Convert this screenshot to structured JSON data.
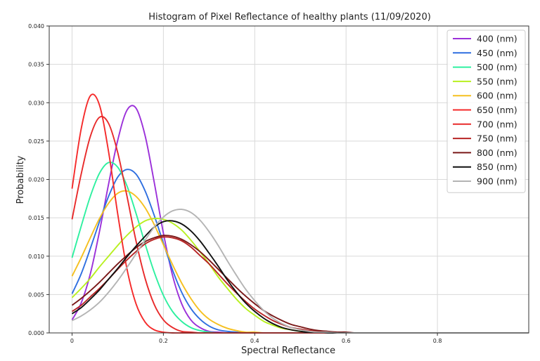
{
  "chart_data": {
    "type": "line",
    "title": "Histogram of Pixel Reflectance of healthy plants (11/09/2020)",
    "xlabel": "Spectral Reflectance",
    "ylabel": "Probability",
    "xlim": [
      -0.05,
      1.0
    ],
    "ylim": [
      0,
      0.04
    ],
    "x_ticks": [
      {
        "value": 0,
        "label": "0"
      },
      {
        "value": 0.2,
        "label": "0.2"
      },
      {
        "value": 0.4,
        "label": "0.4"
      },
      {
        "value": 0.6,
        "label": "0.6"
      },
      {
        "value": 0.8,
        "label": "0.8"
      }
    ],
    "y_ticks": [
      {
        "value": 0,
        "label": "0.000"
      },
      {
        "value": 0.005,
        "label": "0.005"
      },
      {
        "value": 0.01,
        "label": "0.010"
      },
      {
        "value": 0.015,
        "label": "0.015"
      },
      {
        "value": 0.02,
        "label": "0.020"
      },
      {
        "value": 0.025,
        "label": "0.025"
      },
      {
        "value": 0.03,
        "label": "0.030"
      },
      {
        "value": 0.035,
        "label": "0.035"
      },
      {
        "value": 0.04,
        "label": "0.040"
      }
    ],
    "grid": true,
    "legend_position": "top-right",
    "x": [
      0,
      0.02,
      0.04,
      0.06,
      0.08,
      0.1,
      0.12,
      0.14,
      0.16,
      0.18,
      0.2,
      0.22,
      0.24,
      0.26,
      0.28,
      0.3,
      0.32,
      0.34,
      0.36,
      0.38,
      0.4,
      0.42,
      0.44,
      0.46,
      0.48,
      0.5,
      0.52,
      0.54,
      0.56,
      0.58,
      0.6,
      0.62,
      0.64,
      0.66,
      0.68,
      0.7,
      0.72,
      0.74,
      0.76,
      0.78,
      0.8,
      0.82,
      0.84,
      0.86,
      0.88,
      0.9,
      0.92,
      0.94,
      0.96,
      0.98,
      1.0
    ],
    "series": [
      {
        "name": "400 (nm)",
        "color": "#9b30d9",
        "values": [
          0.0017,
          0.0039,
          0.0077,
          0.0132,
          0.0194,
          0.0251,
          0.029,
          0.0293,
          0.0257,
          0.0196,
          0.013,
          0.0075,
          0.0038,
          0.0017,
          0.0007,
          0.0002,
          0.0001,
          0,
          0,
          0,
          0,
          0,
          0,
          0,
          0,
          0,
          0,
          0,
          0,
          0,
          0,
          0,
          0,
          0,
          0,
          0,
          0,
          0,
          0,
          0,
          0,
          0,
          0,
          0,
          0,
          0,
          0,
          0,
          0,
          0,
          0
        ]
      },
      {
        "name": "450 (nm)",
        "color": "#2f6fe0",
        "values": [
          0.0051,
          0.0077,
          0.011,
          0.0145,
          0.0178,
          0.0203,
          0.0213,
          0.0207,
          0.0185,
          0.0153,
          0.0117,
          0.0082,
          0.0053,
          0.0032,
          0.0018,
          0.0009,
          0.0004,
          0.0002,
          0.0001,
          0,
          0,
          0,
          0,
          0,
          0,
          0,
          0,
          0,
          0,
          0,
          0,
          0,
          0,
          0,
          0,
          0,
          0,
          0,
          0,
          0,
          0,
          0,
          0,
          0,
          0,
          0,
          0,
          0,
          0,
          0,
          0
        ]
      },
      {
        "name": "500 (nm)",
        "color": "#2ef0a0",
        "values": [
          0.0098,
          0.0139,
          0.0178,
          0.0208,
          0.0222,
          0.0216,
          0.0192,
          0.0156,
          0.0116,
          0.0079,
          0.0049,
          0.0028,
          0.0015,
          0.0007,
          0.0003,
          0.0001,
          0,
          0,
          0,
          0,
          0,
          0,
          0,
          0,
          0,
          0,
          0,
          0,
          0,
          0,
          0,
          0,
          0,
          0,
          0,
          0,
          0,
          0,
          0,
          0,
          0,
          0,
          0,
          0,
          0,
          0,
          0,
          0,
          0,
          0,
          0
        ]
      },
      {
        "name": "550 (nm)",
        "color": "#b8f020",
        "values": [
          0.0046,
          0.0058,
          0.0071,
          0.0086,
          0.01,
          0.0114,
          0.0127,
          0.0138,
          0.0146,
          0.0149,
          0.0148,
          0.0143,
          0.0134,
          0.0121,
          0.0106,
          0.009,
          0.0073,
          0.0058,
          0.0044,
          0.0032,
          0.0023,
          0.0015,
          0.001,
          0.0006,
          0.0004,
          0.0002,
          0.0001,
          0.0001,
          0,
          0,
          0,
          0,
          0,
          0,
          0,
          0,
          0,
          0,
          0,
          0,
          0,
          0,
          0,
          0,
          0,
          0,
          0,
          0,
          0,
          0,
          0
        ]
      },
      {
        "name": "600 (nm)",
        "color": "#f5c020",
        "values": [
          0.0074,
          0.0098,
          0.0124,
          0.0149,
          0.0169,
          0.0182,
          0.0185,
          0.0178,
          0.0163,
          0.0141,
          0.0115,
          0.0089,
          0.0065,
          0.0045,
          0.0029,
          0.0018,
          0.0011,
          0.0006,
          0.0003,
          0.0001,
          0.0001,
          0,
          0,
          0,
          0,
          0,
          0,
          0,
          0,
          0,
          0,
          0,
          0,
          0,
          0,
          0,
          0,
          0,
          0,
          0,
          0,
          0,
          0,
          0,
          0,
          0,
          0,
          0,
          0,
          0,
          0
        ]
      },
      {
        "name": "650 (nm)",
        "color": "#f52a2a",
        "values": [
          0.0188,
          0.0266,
          0.0309,
          0.0297,
          0.0236,
          0.0155,
          0.0084,
          0.0038,
          0.0014,
          0.0004,
          0.0001,
          0,
          0,
          0,
          0,
          0,
          0,
          0,
          0,
          0,
          0,
          0,
          0,
          0,
          0,
          0,
          0,
          0,
          0,
          0,
          0,
          0,
          0,
          0,
          0,
          0,
          0,
          0,
          0,
          0,
          0,
          0,
          0,
          0,
          0,
          0,
          0,
          0,
          0,
          0,
          0
        ]
      },
      {
        "name": "700 (nm)",
        "color": "#e82a2a",
        "values": [
          0.0148,
          0.0207,
          0.0256,
          0.0281,
          0.0273,
          0.0235,
          0.0179,
          0.012,
          0.0071,
          0.0037,
          0.0017,
          0.0007,
          0.0002,
          0.0001,
          0,
          0,
          0,
          0,
          0,
          0,
          0,
          0,
          0,
          0,
          0,
          0,
          0,
          0,
          0,
          0,
          0,
          0,
          0,
          0,
          0,
          0,
          0,
          0,
          0,
          0,
          0,
          0,
          0,
          0,
          0,
          0,
          0,
          0,
          0,
          0,
          0
        ]
      },
      {
        "name": "750 (nm)",
        "color": "#b82424",
        "values": [
          0.0028,
          0.0036,
          0.0047,
          0.0058,
          0.007,
          0.0083,
          0.0095,
          0.0106,
          0.0116,
          0.0122,
          0.0125,
          0.0124,
          0.012,
          0.0112,
          0.0101,
          0.009,
          0.0077,
          0.0064,
          0.0052,
          0.0041,
          0.0031,
          0.0023,
          0.0016,
          0.0011,
          0.0007,
          0.0005,
          0.0003,
          0.0002,
          0.0001,
          0.0001,
          0,
          0,
          0,
          0,
          0,
          0,
          0,
          0,
          0,
          0,
          0,
          0,
          0,
          0,
          0,
          0,
          0,
          0,
          0,
          0,
          0
        ]
      },
      {
        "name": "800 (nm)",
        "color": "#7a1818",
        "values": [
          0.0036,
          0.0045,
          0.0055,
          0.0066,
          0.0078,
          0.009,
          0.0101,
          0.0111,
          0.0119,
          0.0124,
          0.0127,
          0.0126,
          0.0122,
          0.0115,
          0.0106,
          0.0095,
          0.0083,
          0.0071,
          0.0059,
          0.0048,
          0.0038,
          0.0029,
          0.0022,
          0.0016,
          0.0011,
          0.0008,
          0.0005,
          0.0003,
          0.0002,
          0.0001,
          0.0001,
          0,
          0,
          0,
          0,
          0,
          0,
          0,
          0,
          0,
          0,
          0,
          0,
          0,
          0,
          0,
          0,
          0,
          0,
          0,
          0
        ]
      },
      {
        "name": "850 (nm)",
        "color": "#111111",
        "values": [
          0.0025,
          0.0033,
          0.0044,
          0.0056,
          0.007,
          0.0084,
          0.0099,
          0.0113,
          0.0126,
          0.0138,
          0.0145,
          0.0146,
          0.0142,
          0.0133,
          0.012,
          0.0104,
          0.0087,
          0.0069,
          0.0053,
          0.0039,
          0.0028,
          0.0019,
          0.0012,
          0.0007,
          0.0004,
          0.0002,
          0.0001,
          0.0001,
          0,
          0,
          0,
          0,
          0,
          0,
          0,
          0,
          0,
          0,
          0,
          0,
          0,
          0,
          0,
          0,
          0,
          0,
          0,
          0,
          0,
          0,
          0
        ]
      },
      {
        "name": "900 (nm)",
        "color": "#b4b4b4",
        "values": [
          0.0016,
          0.0022,
          0.003,
          0.004,
          0.0053,
          0.0068,
          0.0085,
          0.0103,
          0.0121,
          0.0138,
          0.0151,
          0.0159,
          0.0161,
          0.0157,
          0.0147,
          0.0132,
          0.0114,
          0.0094,
          0.0075,
          0.0057,
          0.0042,
          0.0029,
          0.0019,
          0.0012,
          0.0007,
          0.0004,
          0.0002,
          0.0001,
          0.0001,
          0,
          0,
          0,
          0,
          0,
          0,
          0,
          0,
          0,
          0,
          0,
          0,
          0,
          0,
          0,
          0,
          0,
          0,
          0,
          0,
          0,
          0
        ]
      }
    ]
  }
}
